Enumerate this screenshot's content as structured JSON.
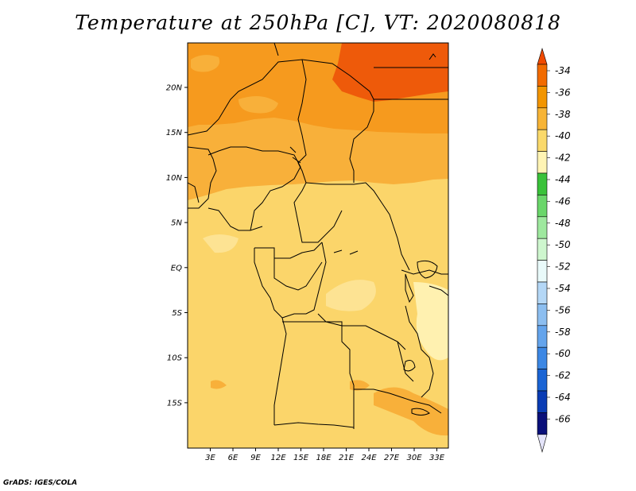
{
  "title": "Temperature at 250hPa [C], VT: 2020080818",
  "footer": "GrADS: IGES/COLA",
  "map": {
    "lon_labels": [
      "3E",
      "6E",
      "9E",
      "12E",
      "15E",
      "18E",
      "21E",
      "24E",
      "27E",
      "30E",
      "33E"
    ],
    "lat_labels": [
      "20N",
      "15N",
      "10N",
      "5N",
      "EQ",
      "5S",
      "10S",
      "15S"
    ]
  },
  "colorbar": {
    "units": "C",
    "levels": [
      "-34",
      "-36",
      "-38",
      "-40",
      "-42",
      "-44",
      "-46",
      "-48",
      "-50",
      "-52",
      "-54",
      "-56",
      "-58",
      "-60",
      "-62",
      "-64",
      "-66"
    ],
    "colors": {
      "top_arrow": "#f04a00",
      "bottom_arrow": "#e4e4fa",
      "bins": [
        "#f26b00",
        "#f29500",
        "#f7b436",
        "#fad96b",
        "#fff4b4",
        "#3ac23a",
        "#6ad66a",
        "#9ee89e",
        "#cef6ce",
        "#e9fafa",
        "#b4d7f6",
        "#8cbef0",
        "#64a4ec",
        "#3c87e4",
        "#1a64d4",
        "#0a3cb4",
        "#0a107a"
      ]
    }
  },
  "colors": {
    "warmest": "#ee5a0a",
    "orange": "#f69a1e",
    "light_orange": "#f8b03a",
    "yellow": "#fbd56a",
    "pale_yellow": "#fde393",
    "lightest": "#fff1b0"
  }
}
